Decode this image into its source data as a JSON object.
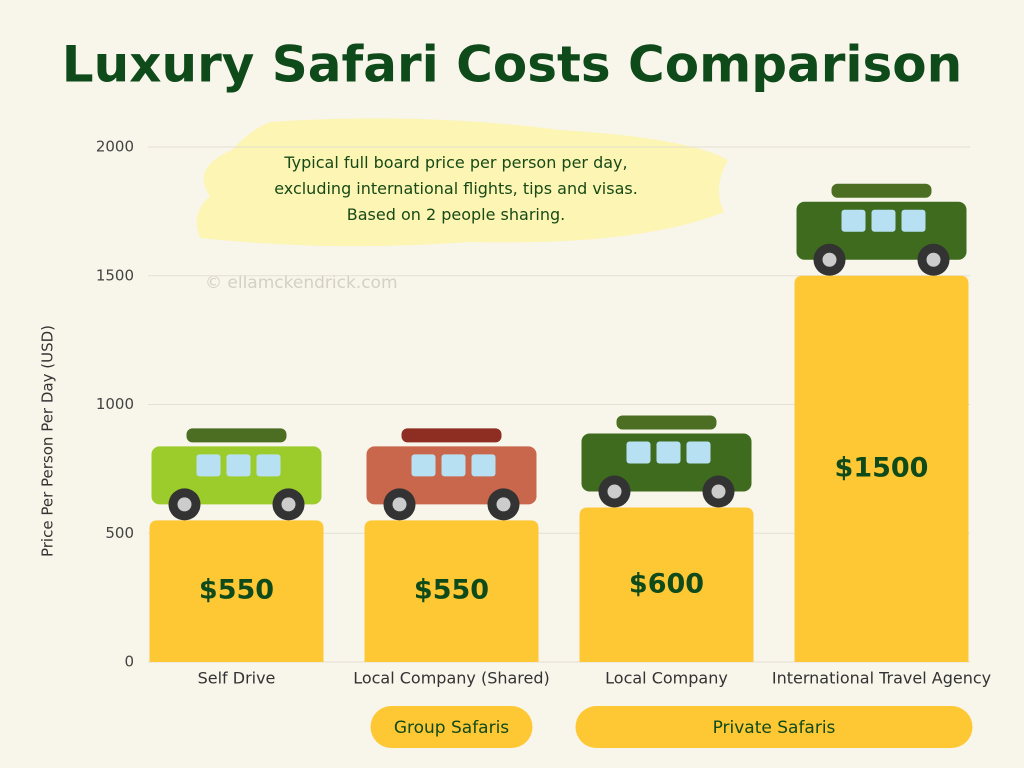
{
  "chart_data": {
    "type": "bar",
    "title": "Luxury Safari Costs Comparison",
    "annotation": "Typical full board price per person per day, excluding international flights, tips and visas. Based on 2 people sharing.",
    "watermark": "© ellamckendrick.com",
    "y_label": "Price Per Person Per Day (USD)",
    "categories": [
      "Self Drive",
      "Local Company (Shared)",
      "Local Company",
      "International Travel Agency"
    ],
    "values": [
      550,
      550,
      600,
      1500
    ],
    "value_labels": [
      "$550",
      "$550",
      "$600",
      "$1500"
    ],
    "color": "#fec734",
    "ylim": [
      0,
      2000
    ],
    "yticks": [
      0,
      500,
      1000,
      1500,
      2000
    ],
    "grid": true,
    "groups": [
      {
        "name": "Group Safaris",
        "categories": [
          "Local Company (Shared)"
        ]
      },
      {
        "name": "Private Safaris",
        "categories": [
          "Local Company",
          "International Travel Agency"
        ]
      }
    ]
  }
}
